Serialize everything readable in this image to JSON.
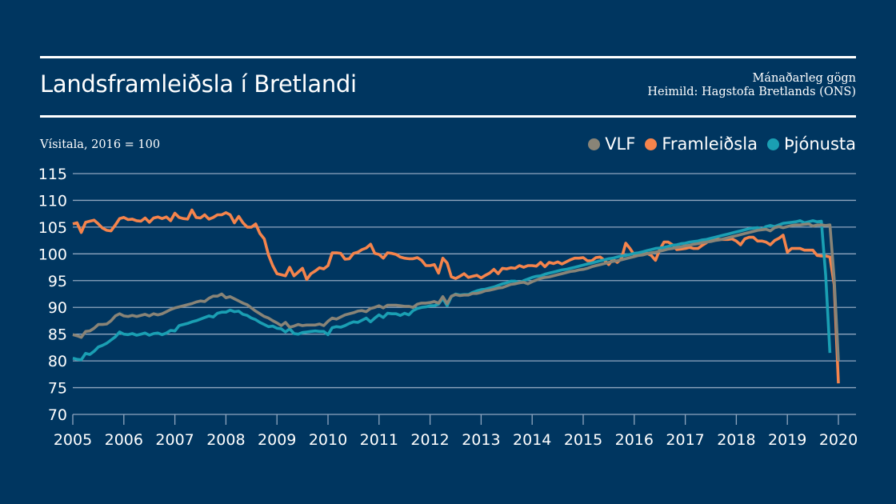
{
  "header": {
    "title": "Landsframleiðsla í Bretlandi",
    "note_frequency": "Mánaðarleg gögn",
    "note_source": "Heimild: Hagstofa Bretlands (ONS)"
  },
  "colors": {
    "background": "#003660",
    "gridline": "#8fa6bf",
    "VLF": "#898477",
    "Framleiðsla": "#f5844c",
    "Þjónusta": "#1a9fb3"
  },
  "chart_data": {
    "type": "line",
    "title": "Landsframleiðsla í Bretlandi",
    "ylabel": "Vísitala, 2016 = 100",
    "xlabel": "",
    "ylim": [
      70,
      115
    ],
    "yticks": [
      70,
      75,
      80,
      85,
      90,
      95,
      100,
      105,
      110,
      115
    ],
    "xticks": [
      "2005",
      "2006",
      "2007",
      "2008",
      "2009",
      "2010",
      "2011",
      "2012",
      "2013",
      "2014",
      "2015",
      "2016",
      "2017",
      "2018",
      "2019",
      "2020"
    ],
    "xrange": [
      "2005-01",
      "2020-04"
    ],
    "frequency": "monthly",
    "grid": true,
    "legend_position": "top-right",
    "series": [
      {
        "name": "VLF",
        "values": [
          84.9,
          84.7,
          84.4,
          85.5,
          85.6,
          86.1,
          86.8,
          86.8,
          86.9,
          87.5,
          88.4,
          88.8,
          88.4,
          88.3,
          88.5,
          88.3,
          88.5,
          88.7,
          88.4,
          88.8,
          88.6,
          88.8,
          89.2,
          89.6,
          89.9,
          90.1,
          90.3,
          90.5,
          90.7,
          91.0,
          91.2,
          91.1,
          91.7,
          92.1,
          92.1,
          92.5,
          91.8,
          92.0,
          91.6,
          91.2,
          90.8,
          90.5,
          89.9,
          89.3,
          88.8,
          88.3,
          88.0,
          87.5,
          87.1,
          86.6,
          87.2,
          86.3,
          86.5,
          86.8,
          86.6,
          86.7,
          86.7,
          86.7,
          86.9,
          86.6,
          87.4,
          88.0,
          87.8,
          88.2,
          88.6,
          88.8,
          89.0,
          89.3,
          89.4,
          89.2,
          89.8,
          90.0,
          90.3,
          89.9,
          90.4,
          90.4,
          90.4,
          90.3,
          90.2,
          90.2,
          90.0,
          90.6,
          90.8,
          90.8,
          90.9,
          91.1,
          90.8,
          92.0,
          90.7,
          92.1,
          92.4,
          92.2,
          92.3,
          92.3,
          92.6,
          92.6,
          92.8,
          93.1,
          93.2,
          93.4,
          93.6,
          93.7,
          94.0,
          94.3,
          94.4,
          94.6,
          94.7,
          94.4,
          94.8,
          95.1,
          95.4,
          95.6,
          95.7,
          95.9,
          96.1,
          96.3,
          96.5,
          96.7,
          96.8,
          97.0,
          97.1,
          97.3,
          97.6,
          97.8,
          98.0,
          98.2,
          98.4,
          98.6,
          98.7,
          98.9,
          99.1,
          99.3,
          99.5,
          99.7,
          99.8,
          100.0,
          100.2,
          100.3,
          100.5,
          100.7,
          100.9,
          101.0,
          101.2,
          101.3,
          101.5,
          101.6,
          101.8,
          101.9,
          102.1,
          102.2,
          102.3,
          102.5,
          102.6,
          102.8,
          103.0,
          103.2,
          103.4,
          103.6,
          103.8,
          104.0,
          104.2,
          104.4,
          104.5,
          104.6,
          104.3,
          104.9,
          105.1,
          104.9,
          105.1,
          105.3,
          105.4,
          105.4,
          105.5,
          105.6,
          105.2,
          105.4,
          105.4,
          105.3,
          105.4,
          95.4,
          80.0
        ]
      },
      {
        "name": "Framleiðsla",
        "values": [
          105.6,
          105.8,
          104.0,
          105.9,
          106.1,
          106.3,
          105.6,
          104.8,
          104.4,
          104.3,
          105.4,
          106.6,
          106.8,
          106.4,
          106.5,
          106.2,
          106.1,
          106.7,
          105.9,
          106.7,
          106.9,
          106.6,
          106.9,
          106.2,
          107.6,
          106.8,
          106.6,
          106.5,
          108.2,
          106.8,
          106.7,
          107.3,
          106.5,
          106.8,
          107.3,
          107.3,
          107.7,
          107.3,
          105.8,
          107.0,
          105.8,
          105.0,
          105.0,
          105.6,
          103.8,
          102.8,
          99.8,
          97.8,
          96.3,
          96.1,
          95.9,
          97.5,
          95.9,
          96.6,
          97.3,
          95.2,
          96.3,
          96.8,
          97.4,
          97.2,
          97.8,
          100.2,
          100.2,
          100.1,
          99.0,
          99.1,
          100.1,
          100.3,
          100.8,
          101.1,
          101.8,
          100.1,
          99.9,
          99.2,
          100.2,
          100.1,
          99.9,
          99.4,
          99.2,
          99.1,
          99.1,
          99.3,
          98.8,
          97.8,
          97.8,
          98.0,
          96.4,
          99.2,
          98.3,
          95.7,
          95.4,
          95.8,
          96.3,
          95.6,
          95.8,
          96.0,
          95.5,
          96.0,
          96.4,
          97.1,
          96.3,
          97.3,
          97.2,
          97.4,
          97.3,
          97.8,
          97.5,
          97.8,
          97.8,
          97.7,
          98.4,
          97.6,
          98.4,
          98.2,
          98.5,
          98.1,
          98.5,
          98.9,
          99.2,
          99.2,
          99.3,
          98.7,
          98.7,
          99.3,
          99.4,
          98.8,
          98.0,
          99.0,
          98.4,
          99.1,
          102.0,
          101.0,
          99.8,
          100.1,
          100.3,
          100.1,
          99.7,
          98.8,
          100.8,
          102.2,
          102.2,
          101.7,
          100.8,
          100.9,
          101.0,
          101.2,
          101.0,
          101.0,
          101.6,
          102.1,
          102.8,
          102.8,
          102.7,
          102.7,
          102.7,
          102.8,
          102.4,
          101.7,
          102.8,
          103.1,
          103.1,
          102.4,
          102.4,
          102.2,
          101.7,
          102.5,
          102.9,
          103.5,
          100.3,
          101.0,
          101.0,
          101.0,
          100.7,
          100.7,
          100.7,
          99.7,
          99.6,
          99.6,
          99.4,
          94.3,
          75.8
        ]
      },
      {
        "name": "Þjónusta",
        "values": [
          80.5,
          80.3,
          80.2,
          81.4,
          81.2,
          81.8,
          82.6,
          82.9,
          83.3,
          83.9,
          84.5,
          85.4,
          85.0,
          84.9,
          85.1,
          84.8,
          85.0,
          85.2,
          84.8,
          85.1,
          85.2,
          84.9,
          85.2,
          85.7,
          85.6,
          86.6,
          86.8,
          87.0,
          87.3,
          87.5,
          87.8,
          88.1,
          88.4,
          88.2,
          88.9,
          89.1,
          89.1,
          89.5,
          89.2,
          89.3,
          88.7,
          88.5,
          88.0,
          87.7,
          87.2,
          86.8,
          86.4,
          86.5,
          86.1,
          86.0,
          85.4,
          86.0,
          85.1,
          85.0,
          85.3,
          85.4,
          85.5,
          85.6,
          85.5,
          85.5,
          84.9,
          86.2,
          86.4,
          86.3,
          86.6,
          87.0,
          87.3,
          87.2,
          87.6,
          88.0,
          87.3,
          88.0,
          88.6,
          88.1,
          88.9,
          88.8,
          88.8,
          88.5,
          88.9,
          88.6,
          89.4,
          89.8,
          90.0,
          90.1,
          90.3,
          90.3,
          90.6,
          91.7,
          90.3,
          92.0,
          92.5,
          92.3,
          92.4,
          92.4,
          92.8,
          93.1,
          93.3,
          93.4,
          93.6,
          93.8,
          94.1,
          94.4,
          94.6,
          94.9,
          94.9,
          94.6,
          95.0,
          95.3,
          95.6,
          95.8,
          95.9,
          96.2,
          96.4,
          96.6,
          96.8,
          97.0,
          97.1,
          97.3,
          97.5,
          97.7,
          97.9,
          98.1,
          98.3,
          98.5,
          98.7,
          98.9,
          99.1,
          99.2,
          99.4,
          99.6,
          99.7,
          99.9,
          100.1,
          100.2,
          100.4,
          100.6,
          100.8,
          101.0,
          101.1,
          101.2,
          101.4,
          101.6,
          101.7,
          101.9,
          102.0,
          102.2,
          102.3,
          102.4,
          102.6,
          102.7,
          102.9,
          103.1,
          103.3,
          103.5,
          103.7,
          103.9,
          104.1,
          104.3,
          104.5,
          104.7,
          104.8,
          104.9,
          104.6,
          105.1,
          105.3,
          105.1,
          105.4,
          105.7,
          105.8,
          105.9,
          106.0,
          106.2,
          105.8,
          106.0,
          106.2,
          106.0,
          106.1,
          96.0,
          81.5
        ]
      }
    ]
  }
}
